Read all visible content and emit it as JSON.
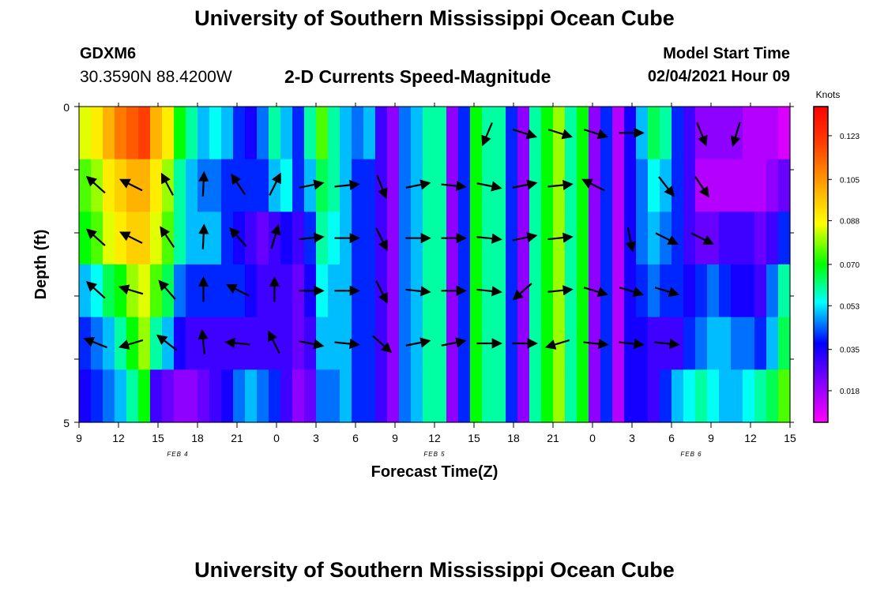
{
  "header": {
    "title": "University of Southern Mississippi Ocean Cube",
    "station": "GDXM6",
    "coords": "30.3590N 88.4200W",
    "subtitle": "2-D Currents Speed-Magnitude",
    "model_start_label": "Model Start Time",
    "model_start_value": "02/04/2021 Hour 09",
    "footer_title": "University of Southern Mississippi Ocean Cube"
  },
  "chart_data": {
    "type": "heatmap",
    "xlabel": "Forecast Time(Z)",
    "ylabel": "Depth (ft)",
    "x_ticks": [
      "9",
      "12",
      "15",
      "18",
      "21",
      "0",
      "3",
      "6",
      "9",
      "12",
      "15",
      "18",
      "21",
      "0",
      "3",
      "6",
      "9",
      "12",
      "15"
    ],
    "day_labels": [
      "FEB 4",
      "FEB 5",
      "FEB 6"
    ],
    "y_ticks": [
      "0",
      "5"
    ],
    "ylim": [
      0,
      5
    ],
    "colorbar": {
      "unit": "Knots",
      "ticks": [
        "0.018",
        "0.035",
        "0.053",
        "0.070",
        "0.088",
        "0.105",
        "0.123"
      ],
      "range": [
        0.005,
        0.135
      ]
    },
    "layers": [
      [
        0.085,
        0.09,
        0.1,
        0.11,
        0.115,
        0.12,
        0.1,
        0.09,
        0.07,
        0.06,
        0.05,
        0.055,
        0.05,
        0.04,
        0.035,
        0.045,
        0.06,
        0.05,
        0.04,
        0.06,
        0.075,
        0.06,
        0.05,
        0.045,
        0.05,
        0.03,
        0.02,
        0.045,
        0.05,
        0.06,
        0.06,
        0.02,
        0.04,
        0.07,
        0.06,
        0.06,
        0.04,
        0.02,
        0.06,
        0.07,
        0.08,
        0.06,
        0.07,
        0.02,
        0.04,
        0.015,
        0.035,
        0.05,
        0.065,
        0.06,
        0.04,
        0.03,
        0.02,
        0.02,
        0.02,
        0.02,
        0.015,
        0.015,
        0.015,
        0.01
      ],
      [
        0.075,
        0.08,
        0.09,
        0.095,
        0.1,
        0.1,
        0.09,
        0.08,
        0.06,
        0.05,
        0.045,
        0.045,
        0.04,
        0.04,
        0.04,
        0.04,
        0.05,
        0.055,
        0.04,
        0.05,
        0.065,
        0.06,
        0.05,
        0.04,
        0.04,
        0.03,
        0.02,
        0.045,
        0.05,
        0.06,
        0.06,
        0.02,
        0.04,
        0.07,
        0.06,
        0.06,
        0.04,
        0.02,
        0.06,
        0.07,
        0.08,
        0.06,
        0.07,
        0.02,
        0.04,
        0.015,
        0.035,
        0.045,
        0.055,
        0.05,
        0.04,
        0.03,
        0.015,
        0.015,
        0.015,
        0.015,
        0.015,
        0.015,
        0.02,
        0.025
      ],
      [
        0.07,
        0.075,
        0.085,
        0.09,
        0.095,
        0.095,
        0.085,
        0.075,
        0.06,
        0.05,
        0.05,
        0.05,
        0.04,
        0.035,
        0.03,
        0.025,
        0.03,
        0.035,
        0.03,
        0.04,
        0.06,
        0.055,
        0.05,
        0.04,
        0.04,
        0.03,
        0.02,
        0.045,
        0.05,
        0.06,
        0.06,
        0.02,
        0.04,
        0.07,
        0.06,
        0.06,
        0.04,
        0.02,
        0.06,
        0.07,
        0.08,
        0.06,
        0.07,
        0.02,
        0.04,
        0.015,
        0.035,
        0.045,
        0.05,
        0.045,
        0.04,
        0.03,
        0.025,
        0.025,
        0.03,
        0.03,
        0.03,
        0.025,
        0.03,
        0.04
      ],
      [
        0.05,
        0.055,
        0.065,
        0.07,
        0.08,
        0.085,
        0.075,
        0.065,
        0.045,
        0.04,
        0.04,
        0.04,
        0.04,
        0.04,
        0.035,
        0.03,
        0.03,
        0.03,
        0.025,
        0.035,
        0.055,
        0.05,
        0.05,
        0.04,
        0.04,
        0.03,
        0.02,
        0.045,
        0.05,
        0.06,
        0.06,
        0.02,
        0.04,
        0.07,
        0.06,
        0.06,
        0.04,
        0.02,
        0.06,
        0.07,
        0.08,
        0.06,
        0.07,
        0.02,
        0.04,
        0.015,
        0.035,
        0.04,
        0.045,
        0.04,
        0.04,
        0.035,
        0.04,
        0.045,
        0.04,
        0.035,
        0.035,
        0.03,
        0.045,
        0.06
      ],
      [
        0.04,
        0.045,
        0.05,
        0.06,
        0.07,
        0.08,
        0.06,
        0.05,
        0.035,
        0.03,
        0.03,
        0.03,
        0.03,
        0.03,
        0.03,
        0.03,
        0.03,
        0.03,
        0.025,
        0.03,
        0.05,
        0.05,
        0.05,
        0.04,
        0.04,
        0.03,
        0.02,
        0.045,
        0.05,
        0.06,
        0.06,
        0.02,
        0.04,
        0.07,
        0.06,
        0.06,
        0.04,
        0.02,
        0.06,
        0.07,
        0.08,
        0.06,
        0.07,
        0.02,
        0.04,
        0.015,
        0.035,
        0.035,
        0.03,
        0.03,
        0.03,
        0.04,
        0.045,
        0.05,
        0.05,
        0.045,
        0.045,
        0.04,
        0.05,
        0.065
      ],
      [
        0.035,
        0.04,
        0.045,
        0.05,
        0.06,
        0.07,
        0.03,
        0.025,
        0.02,
        0.02,
        0.025,
        0.03,
        0.035,
        0.045,
        0.05,
        0.045,
        0.04,
        0.03,
        0.02,
        0.025,
        0.045,
        0.045,
        0.05,
        0.04,
        0.04,
        0.03,
        0.02,
        0.045,
        0.05,
        0.06,
        0.06,
        0.02,
        0.04,
        0.07,
        0.06,
        0.06,
        0.04,
        0.02,
        0.06,
        0.07,
        0.08,
        0.06,
        0.07,
        0.02,
        0.04,
        0.015,
        0.035,
        0.035,
        0.03,
        0.04,
        0.05,
        0.055,
        0.06,
        0.055,
        0.05,
        0.05,
        0.055,
        0.06,
        0.065,
        0.075
      ]
    ],
    "vectors": [
      [
        [
          0,
          0
        ],
        [
          0,
          0
        ],
        [
          0,
          0
        ],
        [
          0,
          0
        ],
        [
          0,
          0
        ],
        [
          0,
          0
        ],
        [
          0,
          0
        ],
        [
          0,
          0
        ],
        [
          0,
          0
        ],
        [
          0,
          0
        ],
        [
          0,
          0
        ],
        [
          -0.4,
          0.95
        ],
        [
          0.95,
          0.3
        ],
        [
          0.95,
          0.3
        ],
        [
          0.95,
          0.3
        ],
        [
          1,
          0
        ],
        [
          0,
          0
        ],
        [
          0.4,
          1
        ],
        [
          -0.3,
          1
        ],
        [
          0,
          0
        ]
      ],
      [
        [
          -1,
          -0.9
        ],
        [
          -1,
          -0.5
        ],
        [
          -0.5,
          -0.95
        ],
        [
          0.05,
          -1
        ],
        [
          -0.6,
          -0.9
        ],
        [
          0.5,
          -1
        ],
        [
          1,
          -0.2
        ],
        [
          1,
          -0.1
        ],
        [
          0.4,
          1
        ],
        [
          1,
          -0.2
        ],
        [
          1,
          0.1
        ],
        [
          1,
          0.2
        ],
        [
          1,
          -0.2
        ],
        [
          1,
          -0.1
        ],
        [
          -1,
          -0.5
        ],
        [
          0,
          0
        ],
        [
          0.7,
          0.9
        ],
        [
          0.6,
          0.9
        ],
        [
          0,
          0
        ],
        [
          0,
          0
        ]
      ],
      [
        [
          -1,
          -0.9
        ],
        [
          -1,
          -0.5
        ],
        [
          -0.6,
          -0.9
        ],
        [
          0.05,
          -1
        ],
        [
          -0.7,
          -0.8
        ],
        [
          0.3,
          -1
        ],
        [
          1,
          -0.1
        ],
        [
          1,
          0
        ],
        [
          0.5,
          1
        ],
        [
          1,
          0
        ],
        [
          1,
          0
        ],
        [
          1,
          0.1
        ],
        [
          1,
          -0.2
        ],
        [
          1,
          -0.1
        ],
        [
          0,
          0
        ],
        [
          0.2,
          1
        ],
        [
          1,
          0.5
        ],
        [
          1,
          0.5
        ],
        [
          0,
          0
        ],
        [
          0,
          0
        ]
      ],
      [
        [
          -1,
          -0.9
        ],
        [
          -1,
          -0.3
        ],
        [
          -0.7,
          -0.8
        ],
        [
          0,
          -1
        ],
        [
          -1,
          -0.5
        ],
        [
          0,
          -1
        ],
        [
          1,
          0
        ],
        [
          1,
          0
        ],
        [
          0.5,
          1
        ],
        [
          1,
          0.1
        ],
        [
          1,
          0
        ],
        [
          1,
          0.1
        ],
        [
          -0.8,
          0.7
        ],
        [
          1,
          -0.1
        ],
        [
          1,
          0.3
        ],
        [
          1,
          0.3
        ],
        [
          1,
          0.3
        ],
        [
          0,
          0
        ],
        [
          0,
          0
        ],
        [
          0,
          0
        ]
      ],
      [
        [
          -1,
          -0.4
        ],
        [
          -1,
          0.3
        ],
        [
          -0.9,
          -0.7
        ],
        [
          -0.1,
          -1
        ],
        [
          -1,
          -0.1
        ],
        [
          -0.5,
          -1
        ],
        [
          1,
          0.2
        ],
        [
          1,
          0.1
        ],
        [
          0.9,
          0.8
        ],
        [
          1,
          -0.2
        ],
        [
          1,
          -0.2
        ],
        [
          1,
          0
        ],
        [
          1,
          0
        ],
        [
          -1,
          0.3
        ],
        [
          1,
          0.1
        ],
        [
          1,
          0.1
        ],
        [
          1,
          0.1
        ],
        [
          0,
          0
        ],
        [
          0,
          0
        ],
        [
          0,
          0
        ]
      ],
      [
        [
          0,
          0
        ],
        [
          0,
          0
        ],
        [
          0,
          0
        ],
        [
          0,
          0
        ],
        [
          0,
          0
        ],
        [
          0,
          0
        ],
        [
          0,
          0
        ],
        [
          0,
          0
        ],
        [
          0,
          0
        ],
        [
          0,
          0
        ],
        [
          0,
          0
        ],
        [
          0,
          0
        ],
        [
          0,
          0
        ],
        [
          0,
          0
        ],
        [
          0,
          0
        ],
        [
          0,
          0
        ],
        [
          0,
          0
        ],
        [
          0,
          0
        ],
        [
          0,
          0
        ],
        [
          0,
          0
        ]
      ]
    ]
  }
}
